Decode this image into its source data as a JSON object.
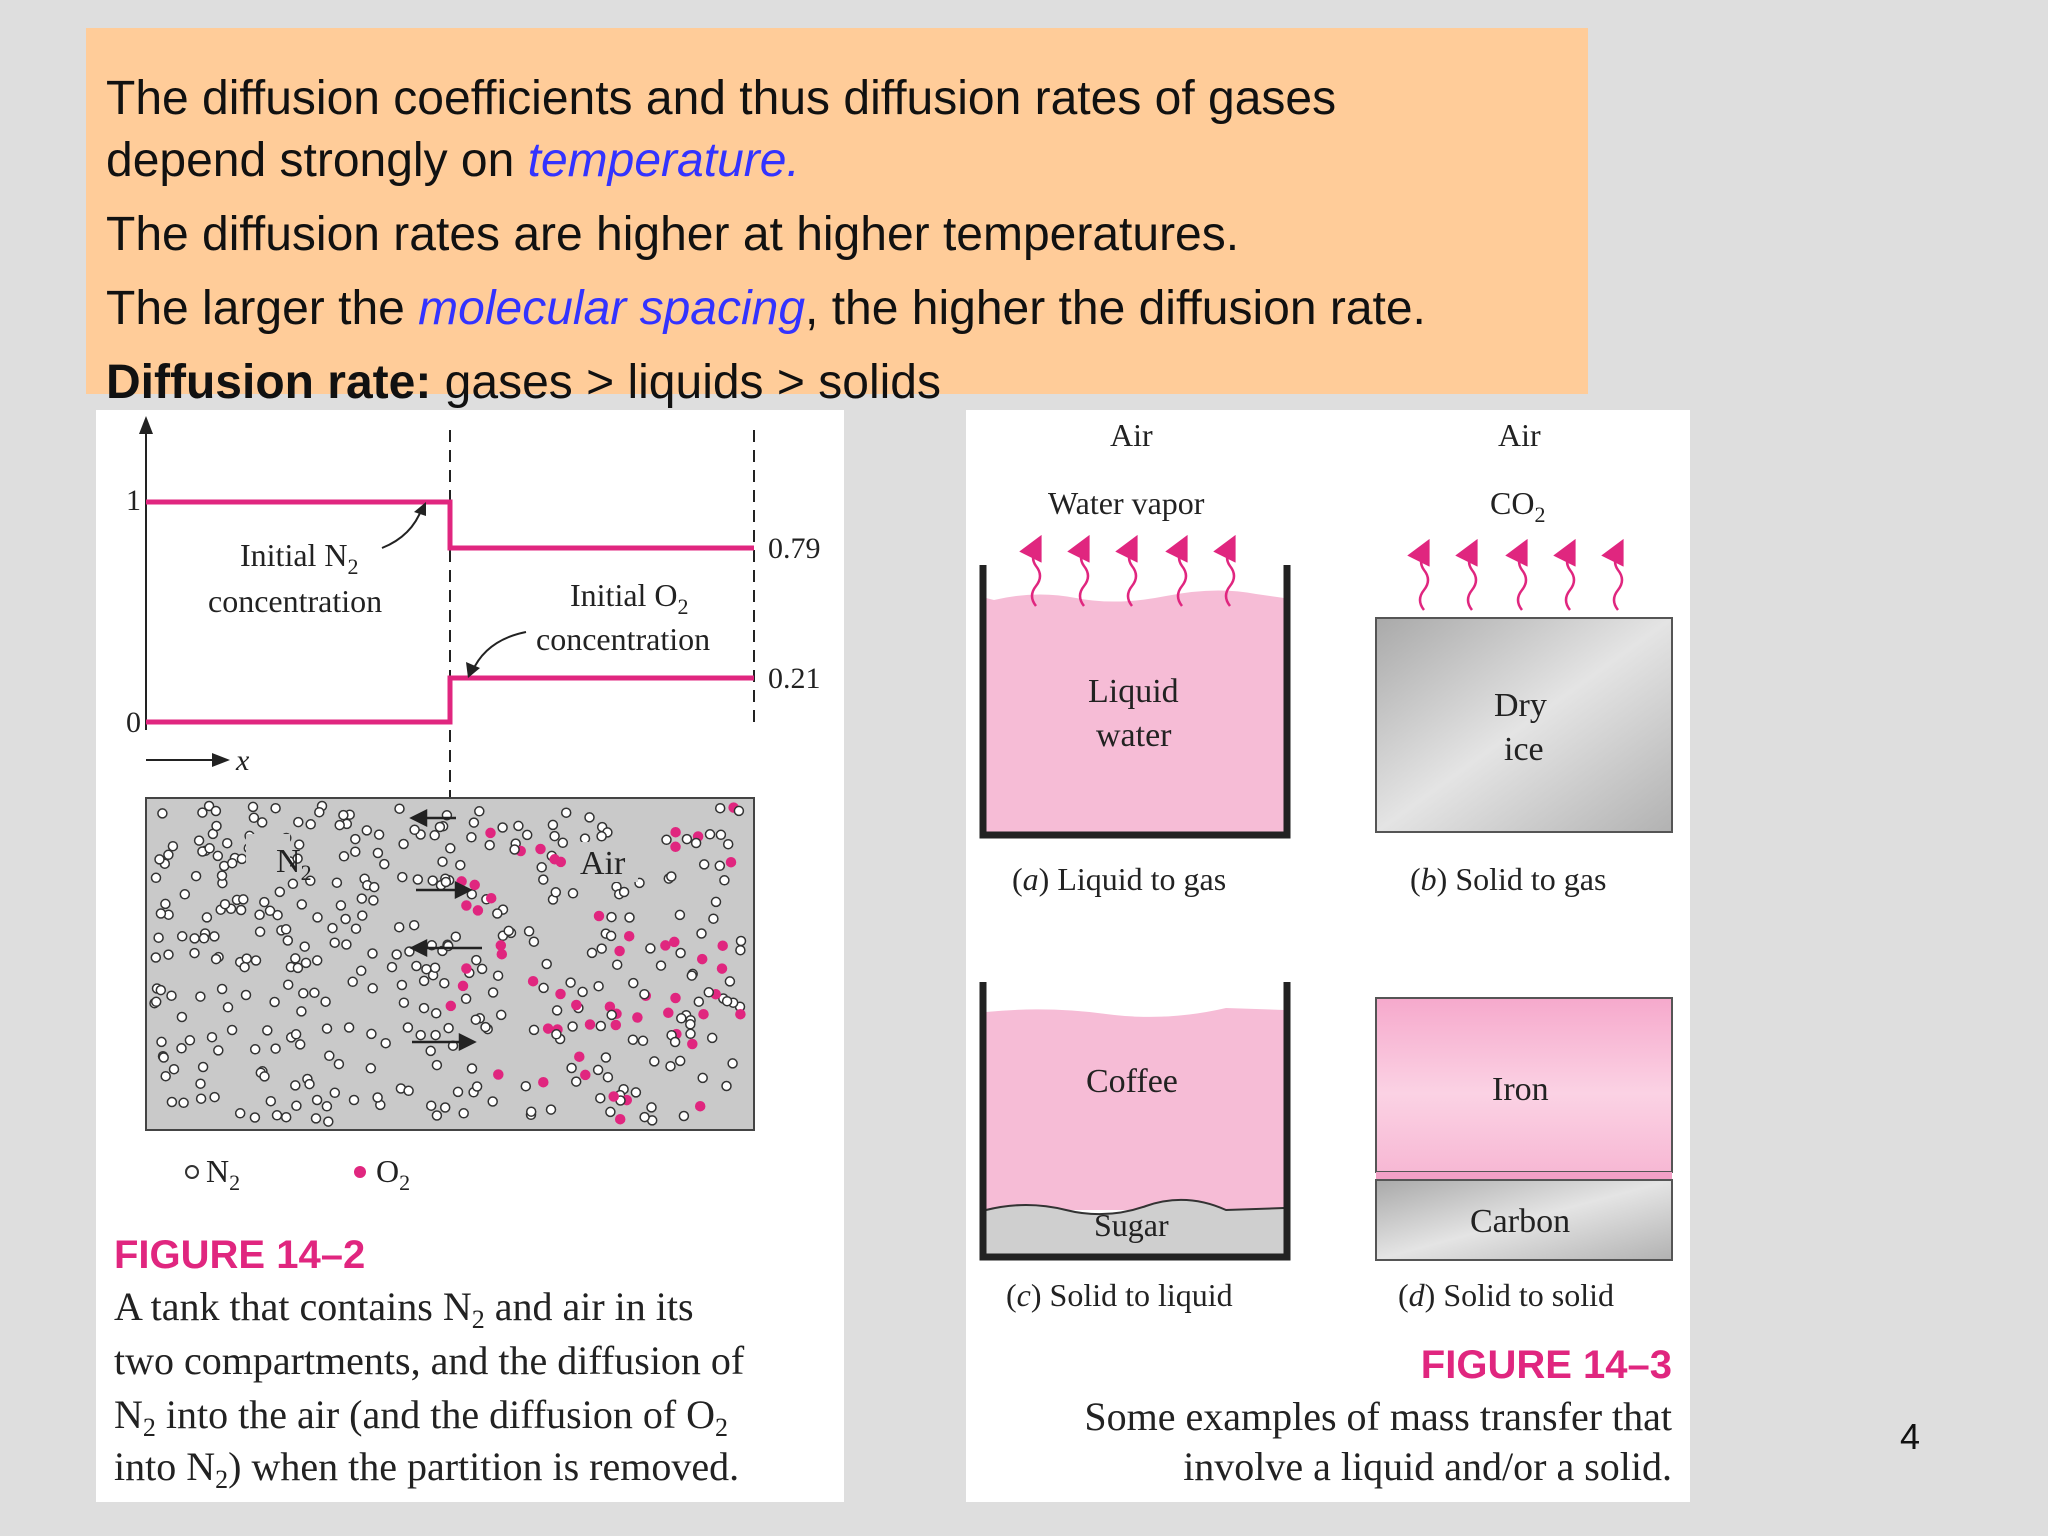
{
  "callout": {
    "line1": "The diffusion coefficients and thus diffusion rates of gases",
    "line2_pre": "depend strongly on ",
    "line2_hl": "temperature.",
    "line3": "The diffusion rates are higher at higher temperatures.",
    "line4_pre": "The larger the ",
    "line4_hl": "molecular spacing",
    "line4_post": ", the higher the diffusion rate.",
    "line5_bold": "Diffusion rate:",
    "line5_rest": " gases > liquids > solids"
  },
  "fig142": {
    "ytick1": "1",
    "ytick0": "0",
    "val079": "0.79",
    "val021": "0.21",
    "n2_label": "Initial N",
    "n2_sub": "2",
    "conc": "concentration",
    "o2_label": "Initial O",
    "o2_sub": "2",
    "xaxis": "x",
    "tank_n2": "N",
    "tank_n2_sub": "2",
    "tank_air": "Air",
    "legend_n2": "N",
    "legend_n2_sub": "2",
    "legend_o2": "O",
    "legend_o2_sub": "2",
    "figure_label": "FIGURE 14–2",
    "caption_line1_a": "A tank that contains N",
    "caption_line1_sub": "2",
    "caption_line1_b": " and air in its",
    "caption_line2": "two compartments, and the diffusion of",
    "caption_line3_a": "N",
    "caption_line3_sub": "2",
    "caption_line3_b": " into the air (and the diffusion of O",
    "caption_line3_sub2": "2",
    "caption_line4_a": "into N",
    "caption_line4_sub": "2",
    "caption_line4_b": ") when the partition is removed."
  },
  "fig143": {
    "air_a": "Air",
    "air_b": "Air",
    "water_vapor": "Water vapor",
    "co2": "CO",
    "co2_sub": "2",
    "liquid": "Liquid",
    "water": "water",
    "dry": "Dry",
    "ice": "ice",
    "cap_a_l": "(",
    "cap_a_i": "a",
    "cap_a_r": ") Liquid to gas",
    "cap_b_l": "(",
    "cap_b_i": "b",
    "cap_b_r": ") Solid to gas",
    "coffee": "Coffee",
    "sugar": "Sugar",
    "iron": "Iron",
    "carbon": "Carbon",
    "cap_c_l": "(",
    "cap_c_i": "c",
    "cap_c_r": ") Solid to liquid",
    "cap_d_l": "(",
    "cap_d_i": "d",
    "cap_d_r": ") Solid to solid",
    "figure_label": "FIGURE 14–3",
    "caption_line1": "Some examples of mass transfer that",
    "caption_line2": "involve a liquid and/or a solid."
  },
  "page_number": "4",
  "colors": {
    "magenta": "#e0267f",
    "pink": "#f6bcd6",
    "callout": "#ffcc99",
    "blue": "#3333ff"
  }
}
